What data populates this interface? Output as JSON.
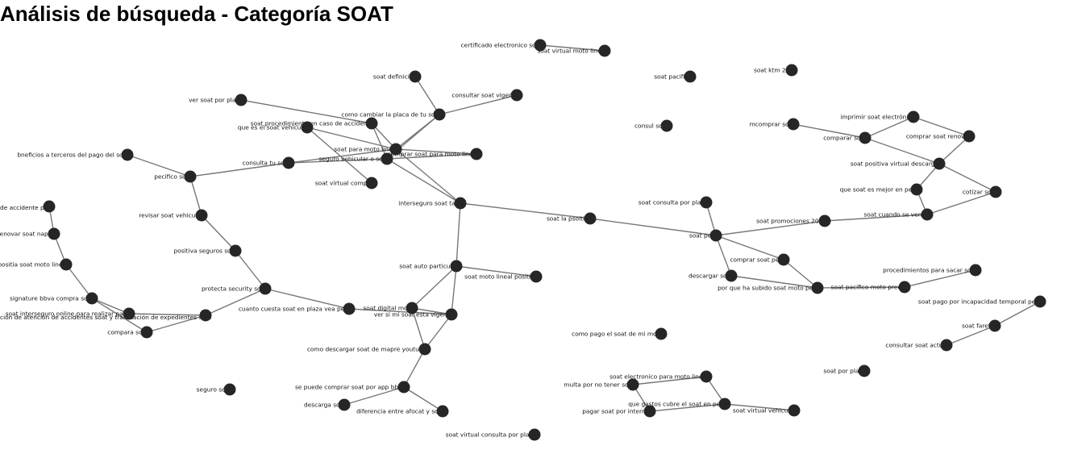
{
  "title": "Análisis de búsqueda - Categoría SOAT",
  "colors": {
    "node": "#262626",
    "edge": "#777777",
    "text": "#111111",
    "background": "#ffffff"
  },
  "nodes": [
    {
      "id": "n01",
      "label": "certificado electronico soat"
    },
    {
      "id": "n02",
      "label": "soat virtual moto lineal"
    },
    {
      "id": "n03",
      "label": "soat pacifico"
    },
    {
      "id": "n04",
      "label": "soat ktm 200"
    },
    {
      "id": "n05",
      "label": "soat definicion"
    },
    {
      "id": "n06",
      "label": "consultar soat vigente"
    },
    {
      "id": "n07",
      "label": "ver soat por placa"
    },
    {
      "id": "n08",
      "label": "como cambiar la placa de tu soat"
    },
    {
      "id": "n09",
      "label": "soat procedimiento en caso de accidente"
    },
    {
      "id": "n10",
      "label": "que es el soat vehicular"
    },
    {
      "id": "n11",
      "label": "consul soat"
    },
    {
      "id": "n12",
      "label": "mcomprar soat"
    },
    {
      "id": "n13",
      "label": "imprimir soat electrónico"
    },
    {
      "id": "n14",
      "label": "comparar soat"
    },
    {
      "id": "n15",
      "label": "comprar soat renovar"
    },
    {
      "id": "n16",
      "label": "soat para moto lineal"
    },
    {
      "id": "n17",
      "label": "seguro vehicular o soat"
    },
    {
      "id": "n18",
      "label": "comprar soat para moto lineal"
    },
    {
      "id": "n19",
      "label": "bneficios a terceros del pago del soat"
    },
    {
      "id": "n20",
      "label": "consulta tu soat"
    },
    {
      "id": "n21",
      "label": "pecifico soat"
    },
    {
      "id": "n22",
      "label": "soat virtual compra"
    },
    {
      "id": "n23",
      "label": "soat positiva virtual descargar"
    },
    {
      "id": "n24",
      "label": "que soat es mejor en peru"
    },
    {
      "id": "n25",
      "label": "cotizar soat"
    },
    {
      "id": "n26",
      "label": "interseguro soat tasa"
    },
    {
      "id": "n27",
      "label": "soat consulta por placa"
    },
    {
      "id": "n28",
      "label": "soat cuando se vence"
    },
    {
      "id": "n29",
      "label": "de accidente peru"
    },
    {
      "id": "n30",
      "label": "revisar soat vehicular"
    },
    {
      "id": "n31",
      "label": "soat la psoitiva"
    },
    {
      "id": "n32",
      "label": "soat promociones 2023"
    },
    {
      "id": "n33",
      "label": "renovar soat nappe"
    },
    {
      "id": "n34",
      "label": "soat peru"
    },
    {
      "id": "n35",
      "label": "positiva seguros soat"
    },
    {
      "id": "n36",
      "label": "comprar soat peru"
    },
    {
      "id": "n37",
      "label": "positia soat moto lineal"
    },
    {
      "id": "n38",
      "label": "soat auto particular"
    },
    {
      "id": "n39",
      "label": "procedimientos para sacar soat"
    },
    {
      "id": "n40",
      "label": "soat moto lineal positiva"
    },
    {
      "id": "n41",
      "label": "descargar soat"
    },
    {
      "id": "n42",
      "label": "protecta security soat"
    },
    {
      "id": "n43",
      "label": "por que ha subido soat moto peru"
    },
    {
      "id": "n44",
      "label": "soat pacifico moto precio"
    },
    {
      "id": "n45",
      "label": "signature bbva compra soat"
    },
    {
      "id": "n46",
      "label": "soat pago por incapacidad temporal peru"
    },
    {
      "id": "n47",
      "label": "cuanto cuesta soat en plaza vea peru"
    },
    {
      "id": "n48",
      "label": "soat digital moto"
    },
    {
      "id": "n49",
      "label": "soat interseguro online para realizar pago"
    },
    {
      "id": "n50",
      "label": "ción de atención de accidentes soat y tramitación de expedientes soat"
    },
    {
      "id": "n51",
      "label": "ver si mi soat esta vigente"
    },
    {
      "id": "n52",
      "label": "soat faretta"
    },
    {
      "id": "n53",
      "label": "compara soat"
    },
    {
      "id": "n54",
      "label": "como pago el soat de mi moto"
    },
    {
      "id": "n55",
      "label": "consultar soat actual"
    },
    {
      "id": "n56",
      "label": "como descargar soat de mapre youtube"
    },
    {
      "id": "n57",
      "label": "soat por placa"
    },
    {
      "id": "n58",
      "label": "soat electronico para moto lineal"
    },
    {
      "id": "n59",
      "label": "multa por no tener soat"
    },
    {
      "id": "n60",
      "label": "seguro soat"
    },
    {
      "id": "n61",
      "label": "se puede comprar soat por app bbva"
    },
    {
      "id": "n62",
      "label": "que gastos cubre el soat en peru"
    },
    {
      "id": "n63",
      "label": "descarga soat"
    },
    {
      "id": "n64",
      "label": "soat virtual vehicular"
    },
    {
      "id": "n65",
      "label": "diferencia entre afocat y soat"
    },
    {
      "id": "n66",
      "label": "pagar soat por internet"
    },
    {
      "id": "n67",
      "label": "soat virtual consulta por placa"
    }
  ],
  "edges": [
    [
      "n01",
      "n02"
    ],
    [
      "n05",
      "n08"
    ],
    [
      "n06",
      "n08"
    ],
    [
      "n08",
      "n16"
    ],
    [
      "n08",
      "n17"
    ],
    [
      "n07",
      "n09"
    ],
    [
      "n09",
      "n16"
    ],
    [
      "n09",
      "n17"
    ],
    [
      "n10",
      "n16"
    ],
    [
      "n10",
      "n22"
    ],
    [
      "n16",
      "n18"
    ],
    [
      "n17",
      "n18"
    ],
    [
      "n16",
      "n17"
    ],
    [
      "n16",
      "n26"
    ],
    [
      "n17",
      "n26"
    ],
    [
      "n17",
      "n20"
    ],
    [
      "n16",
      "n20"
    ],
    [
      "n19",
      "n21"
    ],
    [
      "n20",
      "n21"
    ],
    [
      "n21",
      "n30"
    ],
    [
      "n30",
      "n35"
    ],
    [
      "n35",
      "n42"
    ],
    [
      "n42",
      "n50"
    ],
    [
      "n42",
      "n47"
    ],
    [
      "n47",
      "n51"
    ],
    [
      "n26",
      "n31"
    ],
    [
      "n31",
      "n34"
    ],
    [
      "n26",
      "n38"
    ],
    [
      "n38",
      "n40"
    ],
    [
      "n38",
      "n48"
    ],
    [
      "n38",
      "n51"
    ],
    [
      "n48",
      "n56"
    ],
    [
      "n51",
      "n56"
    ],
    [
      "n48",
      "n51"
    ],
    [
      "n56",
      "n61"
    ],
    [
      "n61",
      "n63"
    ],
    [
      "n61",
      "n65"
    ],
    [
      "n29",
      "n33"
    ],
    [
      "n33",
      "n37"
    ],
    [
      "n37",
      "n45"
    ],
    [
      "n45",
      "n49"
    ],
    [
      "n45",
      "n53"
    ],
    [
      "n49",
      "n50"
    ],
    [
      "n53",
      "n50"
    ],
    [
      "n27",
      "n34"
    ],
    [
      "n34",
      "n36"
    ],
    [
      "n34",
      "n41"
    ],
    [
      "n34",
      "n32"
    ],
    [
      "n36",
      "n43"
    ],
    [
      "n41",
      "n43"
    ],
    [
      "n43",
      "n44"
    ],
    [
      "n44",
      "n39"
    ],
    [
      "n32",
      "n28"
    ],
    [
      "n28",
      "n24"
    ],
    [
      "n28",
      "n25"
    ],
    [
      "n24",
      "n23"
    ],
    [
      "n23",
      "n25"
    ],
    [
      "n23",
      "n14"
    ],
    [
      "n23",
      "n15"
    ],
    [
      "n12",
      "n14"
    ],
    [
      "n14",
      "n13"
    ],
    [
      "n13",
      "n15"
    ],
    [
      "n46",
      "n52"
    ],
    [
      "n52",
      "n55"
    ],
    [
      "n58",
      "n59"
    ],
    [
      "n58",
      "n62"
    ],
    [
      "n59",
      "n66"
    ],
    [
      "n62",
      "n66"
    ],
    [
      "n62",
      "n64"
    ]
  ]
}
